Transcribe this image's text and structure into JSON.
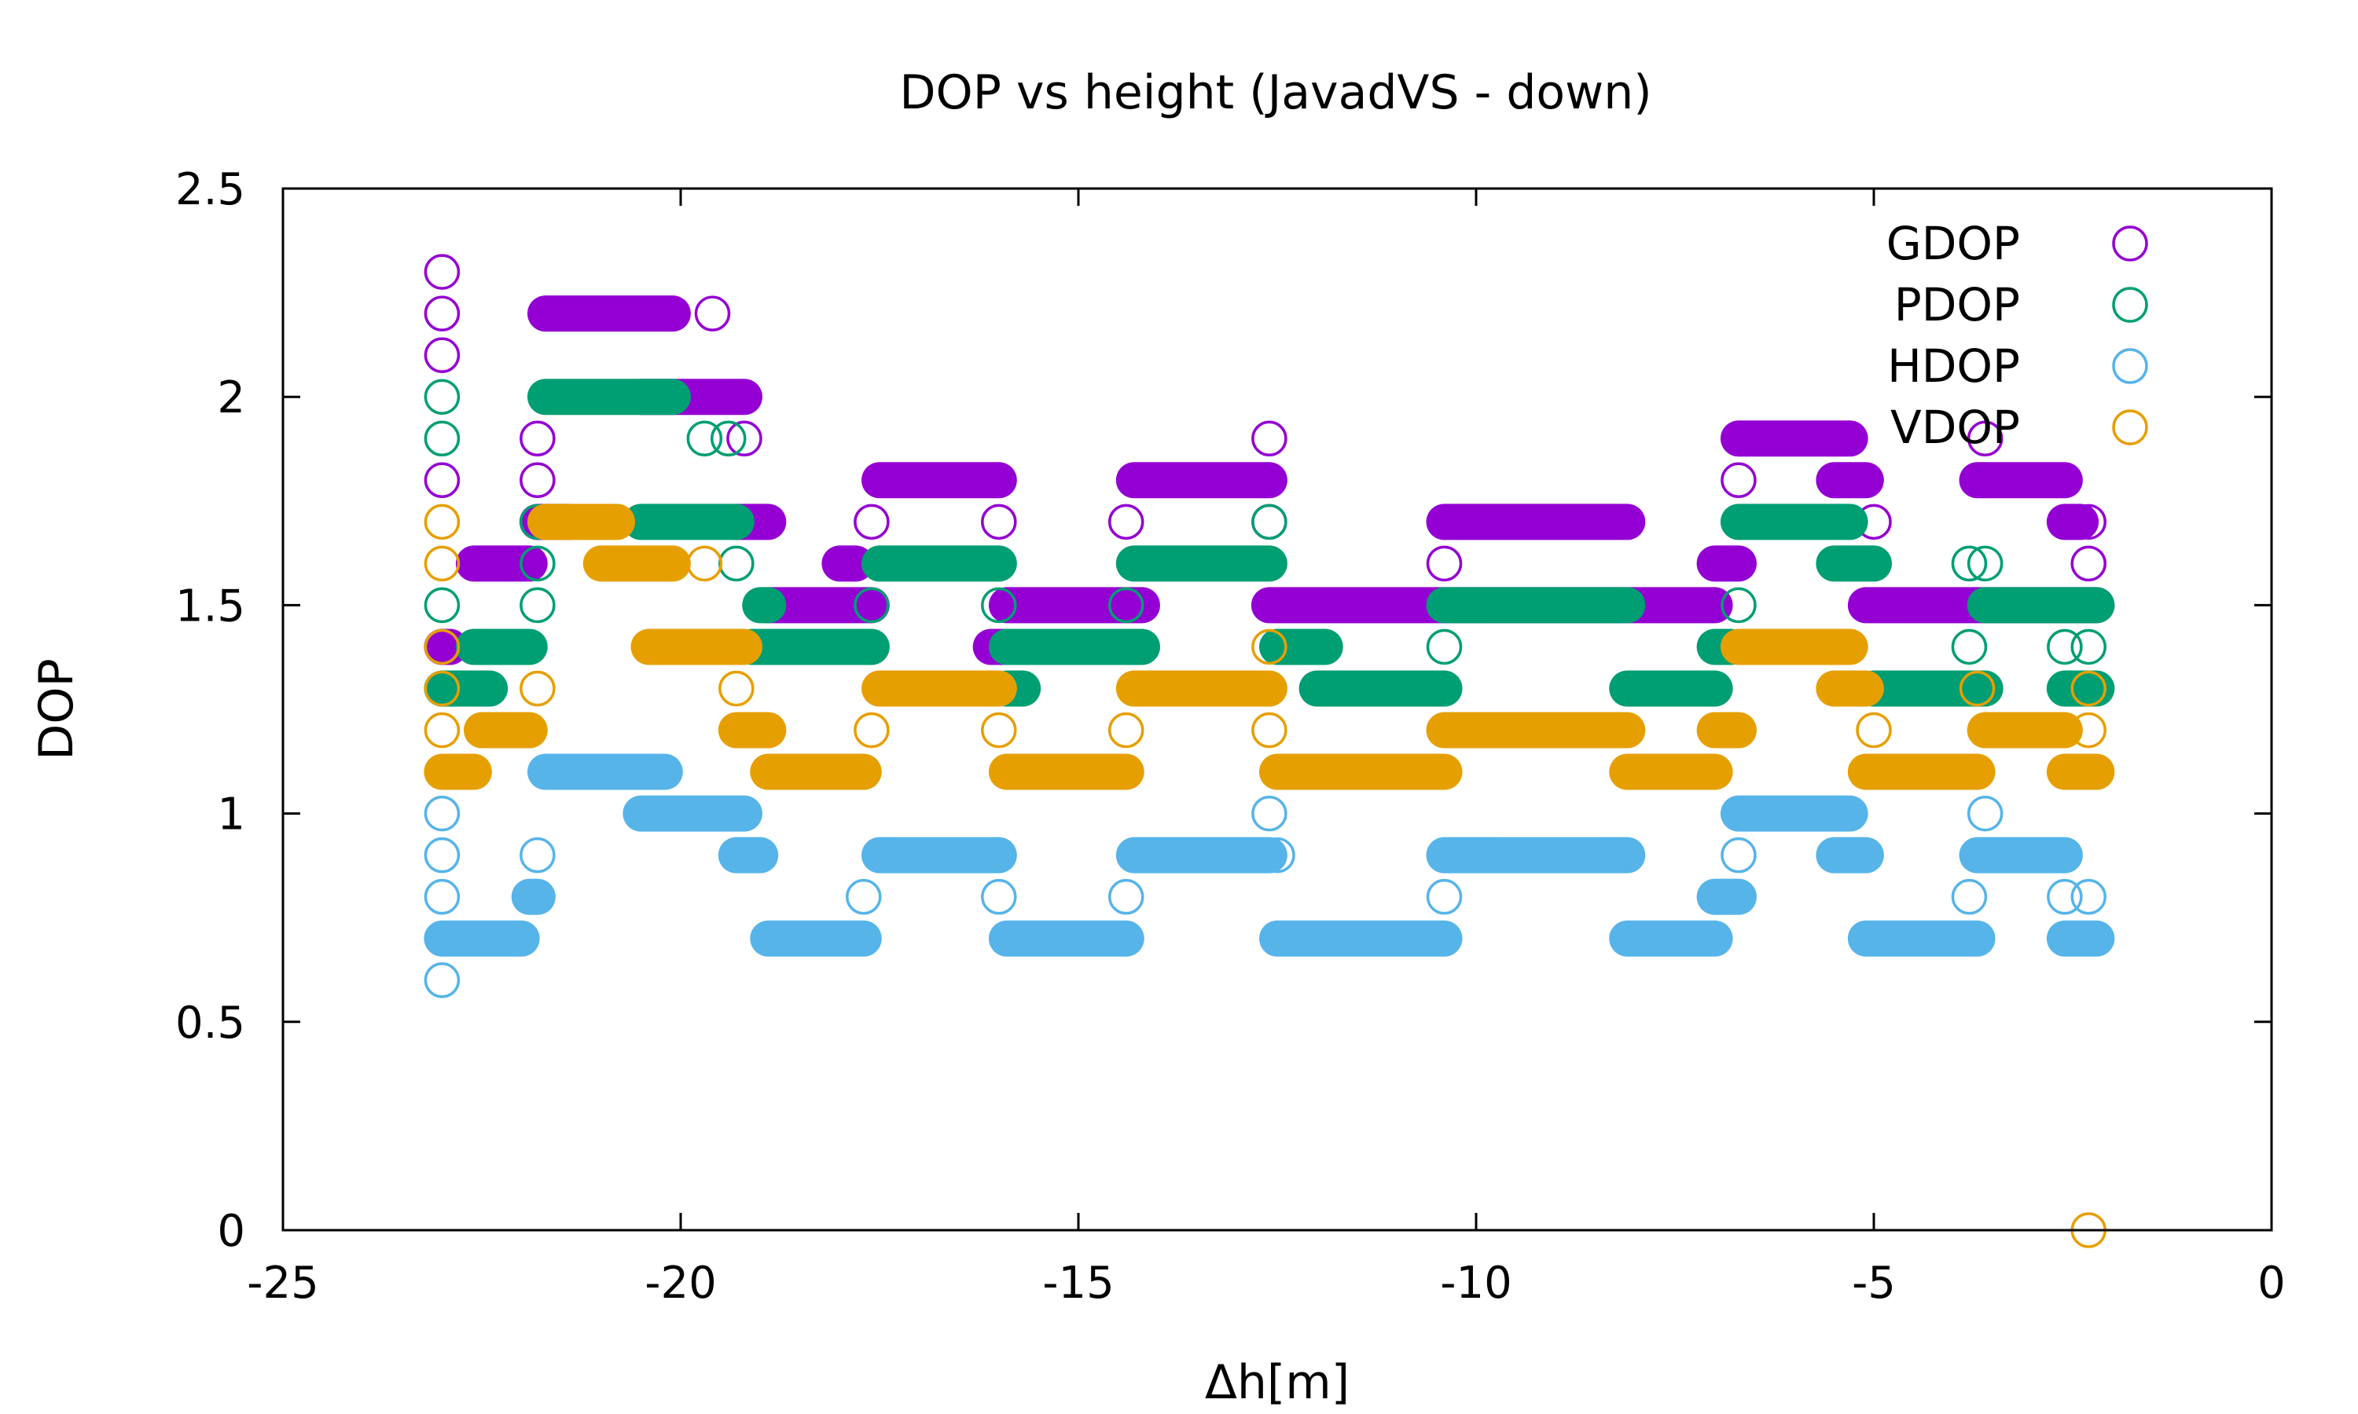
{
  "chart_data": {
    "type": "scatter",
    "title": "DOP vs height (JavadVS - down)",
    "xlabel": "Δh[m]",
    "ylabel": "DOP",
    "xlim": [
      -25,
      0
    ],
    "ylim": [
      0,
      2.5
    ],
    "xticks": [
      -25,
      -20,
      -15,
      -10,
      -5,
      0
    ],
    "yticks": [
      0,
      0.5,
      1,
      1.5,
      2,
      2.5
    ],
    "xtick_labels": [
      "-25",
      "-20",
      "-15",
      "-10",
      "-5",
      "0"
    ],
    "ytick_labels": [
      "0",
      "0.5",
      "1",
      "1.5",
      "2",
      "2.5"
    ],
    "grid": false,
    "legend_position": "top-right",
    "series": [
      {
        "name": "GDOP",
        "color": "#9400d3",
        "segments": [
          [
            -23.0,
            -22.9,
            1.4
          ],
          [
            -22.6,
            -21.9,
            1.6
          ],
          [
            -21.8,
            -21.4,
            1.7
          ],
          [
            -21.7,
            -20.1,
            2.2
          ],
          [
            -20.5,
            -19.2,
            2.0
          ],
          [
            -19.3,
            -18.9,
            1.7
          ],
          [
            -18.9,
            -17.6,
            1.5
          ],
          [
            -18.0,
            -17.8,
            1.6
          ],
          [
            -17.5,
            -16.0,
            1.8
          ],
          [
            -16.1,
            -15.8,
            1.4
          ],
          [
            -15.9,
            -14.2,
            1.5
          ],
          [
            -14.3,
            -12.6,
            1.8
          ],
          [
            -12.6,
            -7.0,
            1.5
          ],
          [
            -10.4,
            -8.1,
            1.7
          ],
          [
            -7.0,
            -6.7,
            1.6
          ],
          [
            -6.7,
            -5.3,
            1.9
          ],
          [
            -5.5,
            -5.1,
            1.8
          ],
          [
            -5.1,
            -2.2,
            1.5
          ],
          [
            -3.7,
            -2.6,
            1.8
          ],
          [
            -2.6,
            -2.4,
            1.7
          ]
        ],
        "points": [
          [
            -23.0,
            2.3
          ],
          [
            -23.0,
            2.2
          ],
          [
            -23.0,
            2.1
          ],
          [
            -23.0,
            1.8
          ],
          [
            -21.8,
            1.9
          ],
          [
            -21.8,
            1.8
          ],
          [
            -19.6,
            2.2
          ],
          [
            -19.3,
            2.0
          ],
          [
            -19.2,
            1.9
          ],
          [
            -17.6,
            1.7
          ],
          [
            -16.0,
            1.7
          ],
          [
            -14.4,
            1.7
          ],
          [
            -12.6,
            1.9
          ],
          [
            -12.6,
            1.7
          ],
          [
            -10.4,
            1.6
          ],
          [
            -6.7,
            1.8
          ],
          [
            -5.0,
            1.7
          ],
          [
            -3.6,
            1.9
          ],
          [
            -2.3,
            1.7
          ],
          [
            -2.3,
            1.6
          ]
        ]
      },
      {
        "name": "PDOP",
        "color": "#009e73",
        "segments": [
          [
            -23.0,
            -22.4,
            1.3
          ],
          [
            -22.6,
            -21.9,
            1.4
          ],
          [
            -21.7,
            -20.1,
            2.0
          ],
          [
            -20.5,
            -19.3,
            1.7
          ],
          [
            -19.1,
            -17.6,
            1.4
          ],
          [
            -19.0,
            -18.9,
            1.5
          ],
          [
            -17.5,
            -16.0,
            1.6
          ],
          [
            -15.9,
            -15.7,
            1.3
          ],
          [
            -15.9,
            -14.2,
            1.4
          ],
          [
            -14.3,
            -12.6,
            1.6
          ],
          [
            -12.5,
            -11.9,
            1.4
          ],
          [
            -12.0,
            -10.4,
            1.3
          ],
          [
            -10.4,
            -8.1,
            1.5
          ],
          [
            -8.1,
            -7.0,
            1.3
          ],
          [
            -7.0,
            -6.8,
            1.4
          ],
          [
            -6.7,
            -5.3,
            1.7
          ],
          [
            -5.5,
            -5.0,
            1.6
          ],
          [
            -5.0,
            -3.6,
            1.3
          ],
          [
            -3.6,
            -2.2,
            1.5
          ],
          [
            -2.6,
            -2.2,
            1.3
          ]
        ],
        "points": [
          [
            -23.0,
            2.0
          ],
          [
            -23.0,
            1.9
          ],
          [
            -23.0,
            1.5
          ],
          [
            -21.8,
            1.7
          ],
          [
            -21.8,
            1.6
          ],
          [
            -21.8,
            1.5
          ],
          [
            -19.7,
            1.9
          ],
          [
            -19.4,
            1.9
          ],
          [
            -19.3,
            1.6
          ],
          [
            -17.6,
            1.5
          ],
          [
            -16.0,
            1.5
          ],
          [
            -14.4,
            1.5
          ],
          [
            -12.6,
            1.7
          ],
          [
            -10.4,
            1.4
          ],
          [
            -6.7,
            1.5
          ],
          [
            -3.8,
            1.6
          ],
          [
            -3.6,
            1.6
          ],
          [
            -3.8,
            1.4
          ],
          [
            -2.6,
            1.4
          ],
          [
            -2.3,
            1.4
          ]
        ]
      },
      {
        "name": "HDOP",
        "color": "#56b4e9",
        "segments": [
          [
            -23.0,
            -22.0,
            0.7
          ],
          [
            -21.9,
            -21.8,
            0.8
          ],
          [
            -21.7,
            -20.2,
            1.1
          ],
          [
            -20.5,
            -19.2,
            1.0
          ],
          [
            -19.3,
            -19.0,
            0.9
          ],
          [
            -18.9,
            -17.7,
            0.7
          ],
          [
            -17.5,
            -16.0,
            0.9
          ],
          [
            -15.9,
            -14.4,
            0.7
          ],
          [
            -14.3,
            -12.6,
            0.9
          ],
          [
            -12.5,
            -10.4,
            0.7
          ],
          [
            -10.4,
            -8.1,
            0.9
          ],
          [
            -8.1,
            -7.0,
            0.7
          ],
          [
            -7.0,
            -6.7,
            0.8
          ],
          [
            -6.7,
            -5.3,
            1.0
          ],
          [
            -5.5,
            -5.1,
            0.9
          ],
          [
            -5.1,
            -3.7,
            0.7
          ],
          [
            -3.7,
            -2.6,
            0.9
          ],
          [
            -2.6,
            -2.2,
            0.7
          ]
        ],
        "points": [
          [
            -23.0,
            1.0
          ],
          [
            -23.0,
            0.9
          ],
          [
            -23.0,
            0.8
          ],
          [
            -23.0,
            0.6
          ],
          [
            -21.8,
            0.9
          ],
          [
            -17.7,
            0.8
          ],
          [
            -16.0,
            0.8
          ],
          [
            -14.4,
            0.8
          ],
          [
            -12.6,
            1.0
          ],
          [
            -12.5,
            0.9
          ],
          [
            -10.4,
            0.8
          ],
          [
            -6.7,
            0.9
          ],
          [
            -3.6,
            1.0
          ],
          [
            -3.8,
            0.8
          ],
          [
            -2.6,
            0.8
          ],
          [
            -2.3,
            0.8
          ]
        ]
      },
      {
        "name": "VDOP",
        "color": "#e69f00",
        "segments": [
          [
            -23.0,
            -22.6,
            1.1
          ],
          [
            -22.5,
            -21.9,
            1.2
          ],
          [
            -21.7,
            -20.8,
            1.7
          ],
          [
            -21.0,
            -20.1,
            1.6
          ],
          [
            -20.4,
            -19.2,
            1.4
          ],
          [
            -19.3,
            -18.9,
            1.2
          ],
          [
            -18.9,
            -17.7,
            1.1
          ],
          [
            -17.5,
            -16.0,
            1.3
          ],
          [
            -15.9,
            -14.4,
            1.1
          ],
          [
            -14.3,
            -12.6,
            1.3
          ],
          [
            -12.5,
            -10.4,
            1.1
          ],
          [
            -10.4,
            -8.1,
            1.2
          ],
          [
            -8.1,
            -7.0,
            1.1
          ],
          [
            -7.0,
            -6.7,
            1.2
          ],
          [
            -6.7,
            -5.3,
            1.4
          ],
          [
            -5.5,
            -5.1,
            1.3
          ],
          [
            -5.1,
            -3.7,
            1.1
          ],
          [
            -3.6,
            -2.6,
            1.2
          ],
          [
            -2.6,
            -2.2,
            1.1
          ]
        ],
        "points": [
          [
            -23.0,
            1.7
          ],
          [
            -23.0,
            1.6
          ],
          [
            -23.0,
            1.4
          ],
          [
            -23.0,
            1.3
          ],
          [
            -23.0,
            1.2
          ],
          [
            -21.8,
            1.3
          ],
          [
            -19.7,
            1.6
          ],
          [
            -19.3,
            1.3
          ],
          [
            -17.6,
            1.2
          ],
          [
            -16.0,
            1.2
          ],
          [
            -14.4,
            1.2
          ],
          [
            -12.6,
            1.4
          ],
          [
            -12.6,
            1.2
          ],
          [
            -5.0,
            1.2
          ],
          [
            -3.7,
            1.3
          ],
          [
            -2.3,
            1.3
          ],
          [
            -2.3,
            1.2
          ],
          [
            -2.3,
            0.0
          ]
        ]
      }
    ]
  }
}
